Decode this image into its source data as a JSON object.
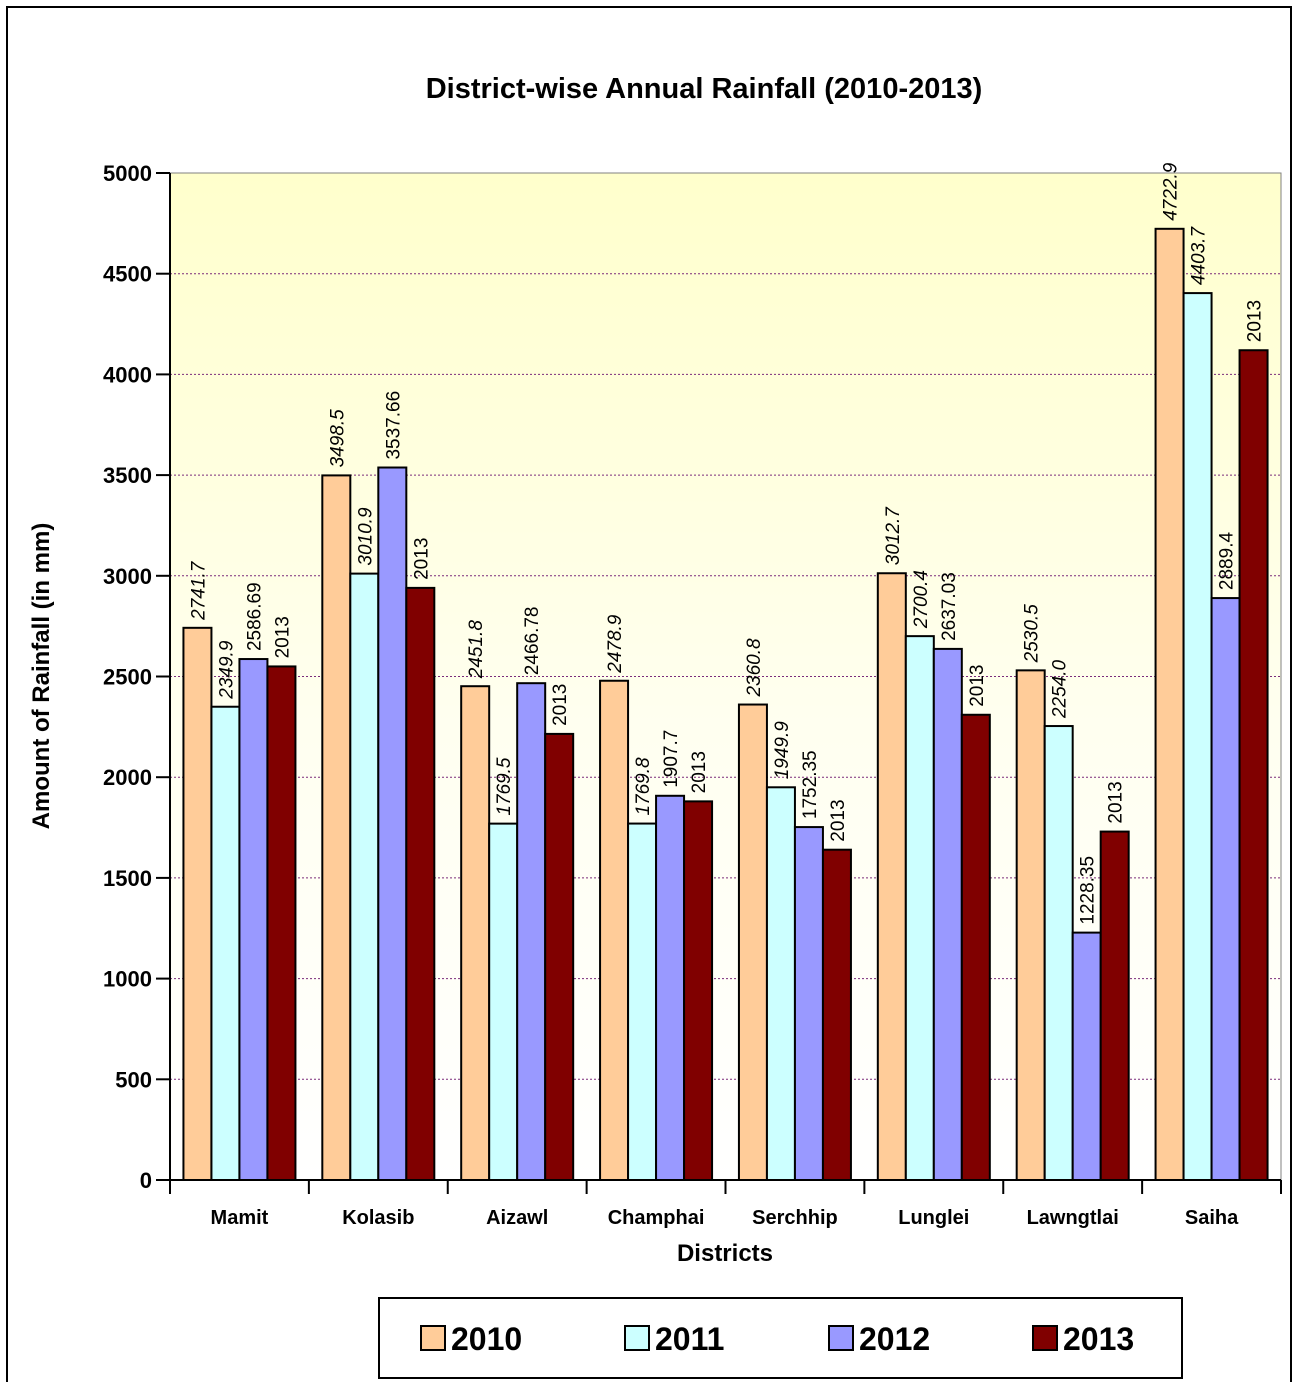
{
  "chart_data": {
    "type": "bar",
    "title": "District-wise Annual Rainfall (2010-2013)",
    "xlabel": "Districts",
    "ylabel": "Amount of Rainfall (in mm)",
    "ylim": [
      0,
      5000
    ],
    "yticks": [
      0,
      500,
      1000,
      1500,
      2000,
      2500,
      3000,
      3500,
      4000,
      4500,
      5000
    ],
    "grid": true,
    "legend_position": "bottom",
    "categories": [
      "Mamit",
      "Kolasib",
      "Aizawl",
      "Champhai",
      "Serchhip",
      "Lunglei",
      "Lawngtlai",
      "Saiha"
    ],
    "series": [
      {
        "name": "2010",
        "color": "#FFCC99",
        "values": [
          2741.7,
          3498.5,
          2451.8,
          2478.9,
          2360.8,
          3012.7,
          2530.5,
          4722.9
        ],
        "labels": [
          "2741.7",
          "3498.5",
          "2451.8",
          "2478.9",
          "2360.8",
          "3012.7",
          "2530.5",
          "4722.9"
        ],
        "label_style": "italic"
      },
      {
        "name": "2011",
        "color": "#CCFFFF",
        "values": [
          2349.9,
          3010.9,
          1769.5,
          1769.8,
          1949.9,
          2700.4,
          2254.0,
          4403.7
        ],
        "labels": [
          "2349.9",
          "3010.9",
          "1769.5",
          "1769.8",
          "1949.9",
          "2700.4",
          "2254.0",
          "4403.7"
        ],
        "label_style": "italic"
      },
      {
        "name": "2012",
        "color": "#9999FF",
        "values": [
          2586.69,
          3537.66,
          2466.78,
          1907.7,
          1752.35,
          2637.03,
          1228.35,
          2889.4
        ],
        "labels": [
          "2586.69",
          "3537.66",
          "2466.78",
          "1907.7",
          "1752.35",
          "2637.03",
          "1228.35",
          "2889.4"
        ],
        "label_style": "normal"
      },
      {
        "name": "2013",
        "color": "#800000",
        "values": [
          2550,
          2940,
          2215,
          1880,
          1640,
          2310,
          1730,
          4120
        ],
        "labels": [
          "2013",
          "2013",
          "2013",
          "2013",
          "2013",
          "2013",
          "2013",
          "2013"
        ],
        "label_style": "normal"
      }
    ]
  }
}
